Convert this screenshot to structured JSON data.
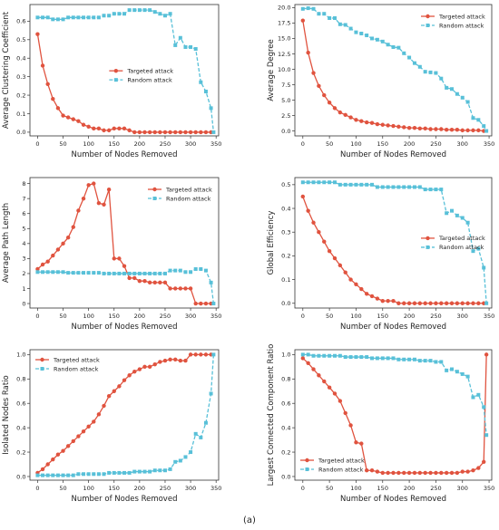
{
  "figure": {
    "caption": "(a)"
  },
  "colors": {
    "targeted": "#e0533f",
    "random": "#58c0d8"
  },
  "chart_data": [
    {
      "type": "line",
      "xlabel": "Number of Nodes Removed",
      "ylabel": "Average Clustering Coefficient",
      "xlim": [
        -15,
        355
      ],
      "ylim": [
        -0.02,
        0.69
      ],
      "xticks": [
        0,
        50,
        100,
        150,
        200,
        250,
        300,
        350
      ],
      "yticks": [
        0.0,
        0.1,
        0.2,
        0.3,
        0.4,
        0.5,
        0.6
      ],
      "ydecimals": 1,
      "legend": "center",
      "series": [
        {
          "name": "Targeted attack",
          "x": [
            0,
            10,
            20,
            30,
            40,
            50,
            60,
            70,
            80,
            90,
            100,
            110,
            120,
            130,
            140,
            150,
            160,
            170,
            180,
            190,
            200,
            210,
            220,
            230,
            240,
            250,
            260,
            270,
            280,
            290,
            300,
            310,
            320,
            330,
            340
          ],
          "y": [
            0.53,
            0.36,
            0.26,
            0.18,
            0.13,
            0.09,
            0.08,
            0.07,
            0.06,
            0.04,
            0.03,
            0.02,
            0.02,
            0.01,
            0.01,
            0.02,
            0.02,
            0.02,
            0.01,
            0.0,
            0.0,
            0.0,
            0.0,
            0.0,
            0.0,
            0.0,
            0.0,
            0.0,
            0.0,
            0.0,
            0.0,
            0.0,
            0.0,
            0.0,
            0.0
          ]
        },
        {
          "name": "Random attack",
          "x": [
            0,
            10,
            20,
            30,
            40,
            50,
            60,
            70,
            80,
            90,
            100,
            110,
            120,
            130,
            140,
            150,
            160,
            170,
            180,
            190,
            200,
            210,
            220,
            230,
            240,
            250,
            260,
            270,
            280,
            290,
            300,
            310,
            320,
            330,
            340,
            345
          ],
          "y": [
            0.62,
            0.62,
            0.62,
            0.61,
            0.61,
            0.61,
            0.62,
            0.62,
            0.62,
            0.62,
            0.62,
            0.62,
            0.62,
            0.63,
            0.63,
            0.64,
            0.64,
            0.64,
            0.66,
            0.66,
            0.66,
            0.66,
            0.66,
            0.65,
            0.64,
            0.63,
            0.64,
            0.47,
            0.51,
            0.46,
            0.46,
            0.45,
            0.27,
            0.22,
            0.13,
            0.0
          ]
        }
      ]
    },
    {
      "type": "line",
      "xlabel": "Number of Nodes Removed",
      "ylabel": "Average Degree",
      "xlim": [
        -15,
        355
      ],
      "ylim": [
        -0.8,
        20.5
      ],
      "xticks": [
        0,
        50,
        100,
        150,
        200,
        250,
        300,
        350
      ],
      "yticks": [
        0.0,
        2.5,
        5.0,
        7.5,
        10.0,
        12.5,
        15.0,
        17.5,
        20.0
      ],
      "ydecimals": 1,
      "legend": "top-right",
      "series": [
        {
          "name": "Targeted attack",
          "x": [
            0,
            10,
            20,
            30,
            40,
            50,
            60,
            70,
            80,
            90,
            100,
            110,
            120,
            130,
            140,
            150,
            160,
            170,
            180,
            190,
            200,
            210,
            220,
            230,
            240,
            250,
            260,
            270,
            280,
            290,
            300,
            310,
            320,
            330,
            340
          ],
          "y": [
            17.9,
            12.7,
            9.4,
            7.3,
            5.8,
            4.6,
            3.7,
            3.0,
            2.6,
            2.2,
            1.8,
            1.6,
            1.4,
            1.3,
            1.1,
            1.0,
            0.9,
            0.8,
            0.7,
            0.6,
            0.5,
            0.5,
            0.4,
            0.4,
            0.3,
            0.3,
            0.3,
            0.2,
            0.2,
            0.2,
            0.1,
            0.1,
            0.1,
            0.1,
            0.0
          ]
        },
        {
          "name": "Random attack",
          "x": [
            0,
            10,
            20,
            30,
            40,
            50,
            60,
            70,
            80,
            90,
            100,
            110,
            120,
            130,
            140,
            150,
            160,
            170,
            180,
            190,
            200,
            210,
            220,
            230,
            240,
            250,
            260,
            270,
            280,
            290,
            300,
            310,
            320,
            330,
            340,
            345
          ],
          "y": [
            19.8,
            19.9,
            19.8,
            19.0,
            19.0,
            18.3,
            18.3,
            17.3,
            17.2,
            16.6,
            16.0,
            15.8,
            15.5,
            15.0,
            14.8,
            14.5,
            14.0,
            13.6,
            13.5,
            12.6,
            11.9,
            11.0,
            10.4,
            9.6,
            9.5,
            9.4,
            8.5,
            7.0,
            6.8,
            6.0,
            5.4,
            4.7,
            2.1,
            1.8,
            0.8,
            0.0
          ]
        }
      ]
    },
    {
      "type": "line",
      "xlabel": "Number of Nodes Removed",
      "ylabel": "Average Path Length",
      "xlim": [
        -15,
        355
      ],
      "ylim": [
        -0.3,
        8.4
      ],
      "xticks": [
        0,
        50,
        100,
        150,
        200,
        250,
        300,
        350
      ],
      "yticks": [
        0,
        1,
        2,
        3,
        4,
        5,
        6,
        7,
        8
      ],
      "ydecimals": 0,
      "legend": "top-right",
      "series": [
        {
          "name": "Targeted attack",
          "x": [
            0,
            10,
            20,
            30,
            40,
            50,
            60,
            70,
            80,
            90,
            100,
            110,
            120,
            130,
            140,
            150,
            160,
            170,
            180,
            190,
            200,
            210,
            220,
            230,
            240,
            250,
            260,
            270,
            280,
            290,
            300,
            310,
            320,
            330,
            340
          ],
          "y": [
            2.3,
            2.6,
            2.8,
            3.2,
            3.6,
            4.0,
            4.4,
            5.1,
            6.2,
            7.0,
            7.9,
            8.0,
            6.7,
            6.6,
            7.6,
            3.0,
            3.0,
            2.5,
            1.7,
            1.7,
            1.5,
            1.5,
            1.4,
            1.4,
            1.4,
            1.4,
            1.0,
            1.0,
            1.0,
            1.0,
            1.0,
            0.0,
            0.0,
            0.0,
            0.0
          ]
        },
        {
          "name": "Random attack",
          "x": [
            0,
            10,
            20,
            30,
            40,
            50,
            60,
            70,
            80,
            90,
            100,
            110,
            120,
            130,
            140,
            150,
            160,
            170,
            180,
            190,
            200,
            210,
            220,
            230,
            240,
            250,
            260,
            270,
            280,
            290,
            300,
            310,
            320,
            330,
            340,
            345
          ],
          "y": [
            2.1,
            2.1,
            2.1,
            2.1,
            2.1,
            2.1,
            2.05,
            2.05,
            2.05,
            2.05,
            2.05,
            2.05,
            2.05,
            2.0,
            2.0,
            2.0,
            2.0,
            2.0,
            2.0,
            2.0,
            2.0,
            2.0,
            2.0,
            2.0,
            2.0,
            2.0,
            2.2,
            2.2,
            2.2,
            2.1,
            2.1,
            2.3,
            2.3,
            2.2,
            1.4,
            0.0
          ]
        }
      ]
    },
    {
      "type": "line",
      "xlabel": "Number of Nodes Removed",
      "ylabel": "Global Efficiency",
      "xlim": [
        -15,
        355
      ],
      "ylim": [
        -0.02,
        0.53
      ],
      "xticks": [
        0,
        50,
        100,
        150,
        200,
        250,
        300,
        350
      ],
      "yticks": [
        0.0,
        0.1,
        0.2,
        0.3,
        0.4,
        0.5
      ],
      "ydecimals": 1,
      "legend": "center-right",
      "series": [
        {
          "name": "Targeted attack",
          "x": [
            0,
            10,
            20,
            30,
            40,
            50,
            60,
            70,
            80,
            90,
            100,
            110,
            120,
            130,
            140,
            150,
            160,
            170,
            180,
            190,
            200,
            210,
            220,
            230,
            240,
            250,
            260,
            270,
            280,
            290,
            300,
            310,
            320,
            330,
            340
          ],
          "y": [
            0.45,
            0.39,
            0.34,
            0.3,
            0.26,
            0.22,
            0.19,
            0.16,
            0.13,
            0.1,
            0.08,
            0.06,
            0.04,
            0.03,
            0.02,
            0.01,
            0.01,
            0.01,
            0.0,
            0.0,
            0.0,
            0.0,
            0.0,
            0.0,
            0.0,
            0.0,
            0.0,
            0.0,
            0.0,
            0.0,
            0.0,
            0.0,
            0.0,
            0.0,
            0.0
          ]
        },
        {
          "name": "Random attack",
          "x": [
            0,
            10,
            20,
            30,
            40,
            50,
            60,
            70,
            80,
            90,
            100,
            110,
            120,
            130,
            140,
            150,
            160,
            170,
            180,
            190,
            200,
            210,
            220,
            230,
            240,
            250,
            260,
            270,
            280,
            290,
            300,
            310,
            320,
            330,
            340,
            345
          ],
          "y": [
            0.51,
            0.51,
            0.51,
            0.51,
            0.51,
            0.51,
            0.51,
            0.5,
            0.5,
            0.5,
            0.5,
            0.5,
            0.5,
            0.5,
            0.49,
            0.49,
            0.49,
            0.49,
            0.49,
            0.49,
            0.49,
            0.49,
            0.49,
            0.48,
            0.48,
            0.48,
            0.48,
            0.38,
            0.39,
            0.37,
            0.36,
            0.34,
            0.22,
            0.23,
            0.15,
            0.0
          ]
        }
      ]
    },
    {
      "type": "line",
      "xlabel": "Number of Nodes Removed",
      "ylabel": "Isolated Nodes Ratio",
      "xlim": [
        -15,
        355
      ],
      "ylim": [
        -0.03,
        1.04
      ],
      "xticks": [
        0,
        50,
        100,
        150,
        200,
        250,
        300,
        350
      ],
      "yticks": [
        0.0,
        0.2,
        0.4,
        0.6,
        0.8,
        1.0
      ],
      "ydecimals": 1,
      "legend": "top-left",
      "series": [
        {
          "name": "Targeted attack",
          "x": [
            0,
            10,
            20,
            30,
            40,
            50,
            60,
            70,
            80,
            90,
            100,
            110,
            120,
            130,
            140,
            150,
            160,
            170,
            180,
            190,
            200,
            210,
            220,
            230,
            240,
            250,
            260,
            270,
            280,
            290,
            300,
            310,
            320,
            330,
            340
          ],
          "y": [
            0.03,
            0.06,
            0.1,
            0.14,
            0.18,
            0.21,
            0.25,
            0.29,
            0.33,
            0.37,
            0.41,
            0.45,
            0.51,
            0.58,
            0.66,
            0.7,
            0.74,
            0.79,
            0.83,
            0.86,
            0.88,
            0.9,
            0.9,
            0.92,
            0.94,
            0.95,
            0.96,
            0.96,
            0.95,
            0.95,
            1.0,
            1.0,
            1.0,
            1.0,
            1.0
          ]
        },
        {
          "name": "Random attack",
          "x": [
            0,
            10,
            20,
            30,
            40,
            50,
            60,
            70,
            80,
            90,
            100,
            110,
            120,
            130,
            140,
            150,
            160,
            170,
            180,
            190,
            200,
            210,
            220,
            230,
            240,
            250,
            260,
            270,
            280,
            290,
            300,
            310,
            320,
            330,
            340,
            345
          ],
          "y": [
            0.01,
            0.01,
            0.01,
            0.01,
            0.01,
            0.01,
            0.01,
            0.01,
            0.02,
            0.02,
            0.02,
            0.02,
            0.02,
            0.02,
            0.03,
            0.03,
            0.03,
            0.03,
            0.03,
            0.04,
            0.04,
            0.04,
            0.04,
            0.05,
            0.05,
            0.05,
            0.06,
            0.12,
            0.13,
            0.16,
            0.2,
            0.35,
            0.32,
            0.44,
            0.68,
            1.0
          ]
        }
      ]
    },
    {
      "type": "line",
      "xlabel": "Number of Nodes Removed",
      "ylabel": "Largest Connected Component Ratio",
      "xlim": [
        -15,
        355
      ],
      "ylim": [
        -0.03,
        1.04
      ],
      "xticks": [
        0,
        50,
        100,
        150,
        200,
        250,
        300,
        350
      ],
      "yticks": [
        0.0,
        0.2,
        0.4,
        0.6,
        0.8,
        1.0
      ],
      "ydecimals": 1,
      "legend": "bottom-left",
      "series": [
        {
          "name": "Targeted attack",
          "x": [
            0,
            10,
            20,
            30,
            40,
            50,
            60,
            70,
            80,
            90,
            100,
            110,
            120,
            130,
            140,
            150,
            160,
            170,
            180,
            190,
            200,
            210,
            220,
            230,
            240,
            250,
            260,
            270,
            280,
            290,
            300,
            310,
            320,
            330,
            340,
            345
          ],
          "y": [
            0.97,
            0.93,
            0.88,
            0.83,
            0.78,
            0.73,
            0.68,
            0.62,
            0.52,
            0.42,
            0.28,
            0.27,
            0.05,
            0.05,
            0.04,
            0.03,
            0.03,
            0.03,
            0.03,
            0.03,
            0.03,
            0.03,
            0.03,
            0.03,
            0.03,
            0.03,
            0.03,
            0.03,
            0.03,
            0.03,
            0.04,
            0.04,
            0.05,
            0.07,
            0.12,
            1.0
          ]
        },
        {
          "name": "Random attack",
          "x": [
            0,
            10,
            20,
            30,
            40,
            50,
            60,
            70,
            80,
            90,
            100,
            110,
            120,
            130,
            140,
            150,
            160,
            170,
            180,
            190,
            200,
            210,
            220,
            230,
            240,
            250,
            260,
            270,
            280,
            290,
            300,
            310,
            320,
            330,
            340,
            345
          ],
          "y": [
            1.0,
            1.0,
            0.99,
            0.99,
            0.99,
            0.99,
            0.99,
            0.99,
            0.98,
            0.98,
            0.98,
            0.98,
            0.98,
            0.97,
            0.97,
            0.97,
            0.97,
            0.97,
            0.96,
            0.96,
            0.96,
            0.96,
            0.95,
            0.95,
            0.95,
            0.94,
            0.94,
            0.87,
            0.88,
            0.86,
            0.84,
            0.82,
            0.65,
            0.67,
            0.57,
            0.34
          ]
        }
      ]
    }
  ]
}
